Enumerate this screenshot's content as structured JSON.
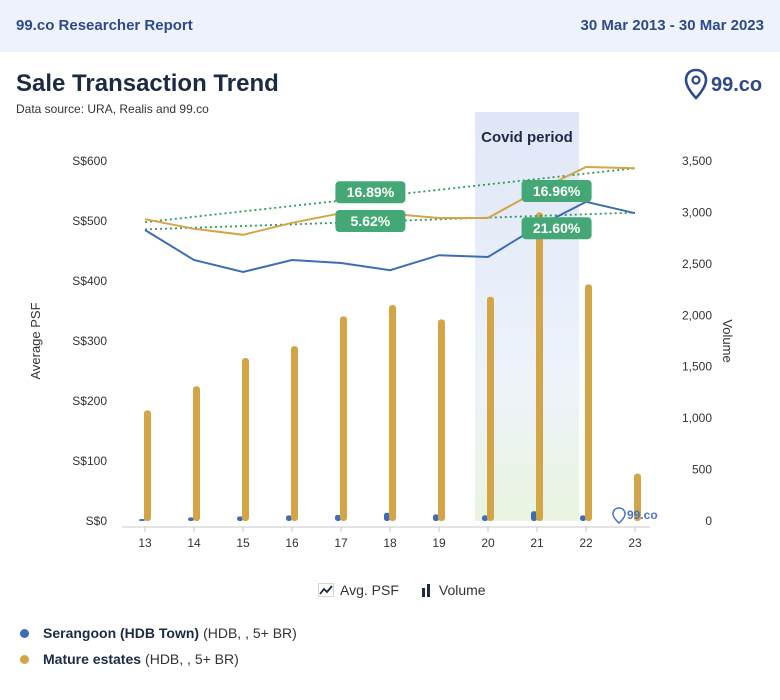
{
  "header": {
    "brand_title": "99.co Researcher Report",
    "date_range": "30 Mar 2013 - 30 Mar 2023"
  },
  "title": "Sale Transaction Trend",
  "source": "Data source: URA, Realis and 99.co",
  "logo_text": "99.co",
  "chart_data": {
    "type": "bar+line",
    "categories": [
      "13",
      "14",
      "15",
      "16",
      "17",
      "18",
      "19",
      "20",
      "21",
      "22",
      "23"
    ],
    "highlight": {
      "label": "Covid period",
      "from": "20",
      "to": "22"
    },
    "y_left": {
      "label": "Average PSF",
      "ticks": [
        "S$0",
        "S$100",
        "S$200",
        "S$300",
        "S$400",
        "S$500",
        "S$600"
      ],
      "range": [
        0,
        600
      ]
    },
    "y_right": {
      "label": "Volume",
      "ticks": [
        "0",
        "500",
        "1,000",
        "1,500",
        "2,000",
        "2,500",
        "3,000",
        "3,500"
      ],
      "range": [
        0,
        3500
      ]
    },
    "psf_series": [
      {
        "name": "Serangoon (HDB Town)",
        "color": "#3d6db5",
        "values": [
          485,
          435,
          415,
          435,
          430,
          418,
          443,
          440,
          490,
          532,
          513
        ]
      },
      {
        "name": "Mature estates",
        "color": "#d4a547",
        "values": [
          503,
          487,
          477,
          497,
          513,
          512,
          505,
          505,
          550,
          590,
          588
        ]
      }
    ],
    "volume_series": [
      {
        "name": "Serangoon (HDB Town)",
        "color": "#3d6db5",
        "values": [
          20,
          35,
          45,
          55,
          60,
          80,
          65,
          55,
          95,
          55,
          0
        ]
      },
      {
        "name": "Mature estates",
        "color": "#d4a547",
        "values": [
          1075,
          1310,
          1585,
          1700,
          1990,
          2100,
          1960,
          2180,
          3000,
          2300,
          460
        ]
      }
    ],
    "trendlines": [
      {
        "color": "#2e9b5a",
        "from": 498,
        "to": 588
      },
      {
        "color": "#2e9b5a",
        "from": 486,
        "to": 514
      }
    ],
    "annotations": [
      {
        "text": "16.89%",
        "x": "17.6",
        "y": 548
      },
      {
        "text": "5.62%",
        "x": "17.6",
        "y": 500
      },
      {
        "text": "16.96%",
        "x": "21.4",
        "y": 550
      },
      {
        "text": "21.60%",
        "x": "21.4",
        "y": 488
      }
    ],
    "watermark": "99.co",
    "legend": [
      "Avg. PSF",
      "Volume"
    ]
  },
  "series_legend": [
    {
      "name": "Serangoon (HDB Town)",
      "detail": "(HDB, , 5+ BR)",
      "color": "#3d6db5"
    },
    {
      "name": "Mature estates",
      "detail": "(HDB, , 5+ BR)",
      "color": "#d4a547"
    }
  ]
}
